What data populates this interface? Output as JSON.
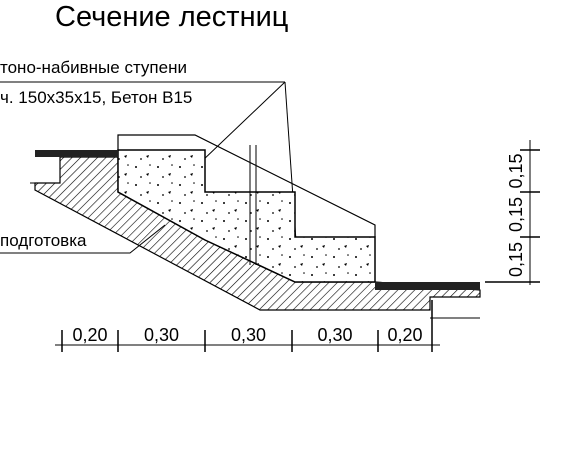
{
  "title": "Сечение  лестниц",
  "labels": {
    "steps_line1": "тоно-набивные  ступени",
    "steps_line2": "ч. 150х35х15,  Бетон  В15",
    "base": "подготовка"
  },
  "horizontal_dimensions": [
    "0,20",
    "0,30",
    "0,30",
    "0,30",
    "0,20"
  ],
  "vertical_dimensions": [
    "0,15",
    "0,15",
    "0,15"
  ]
}
